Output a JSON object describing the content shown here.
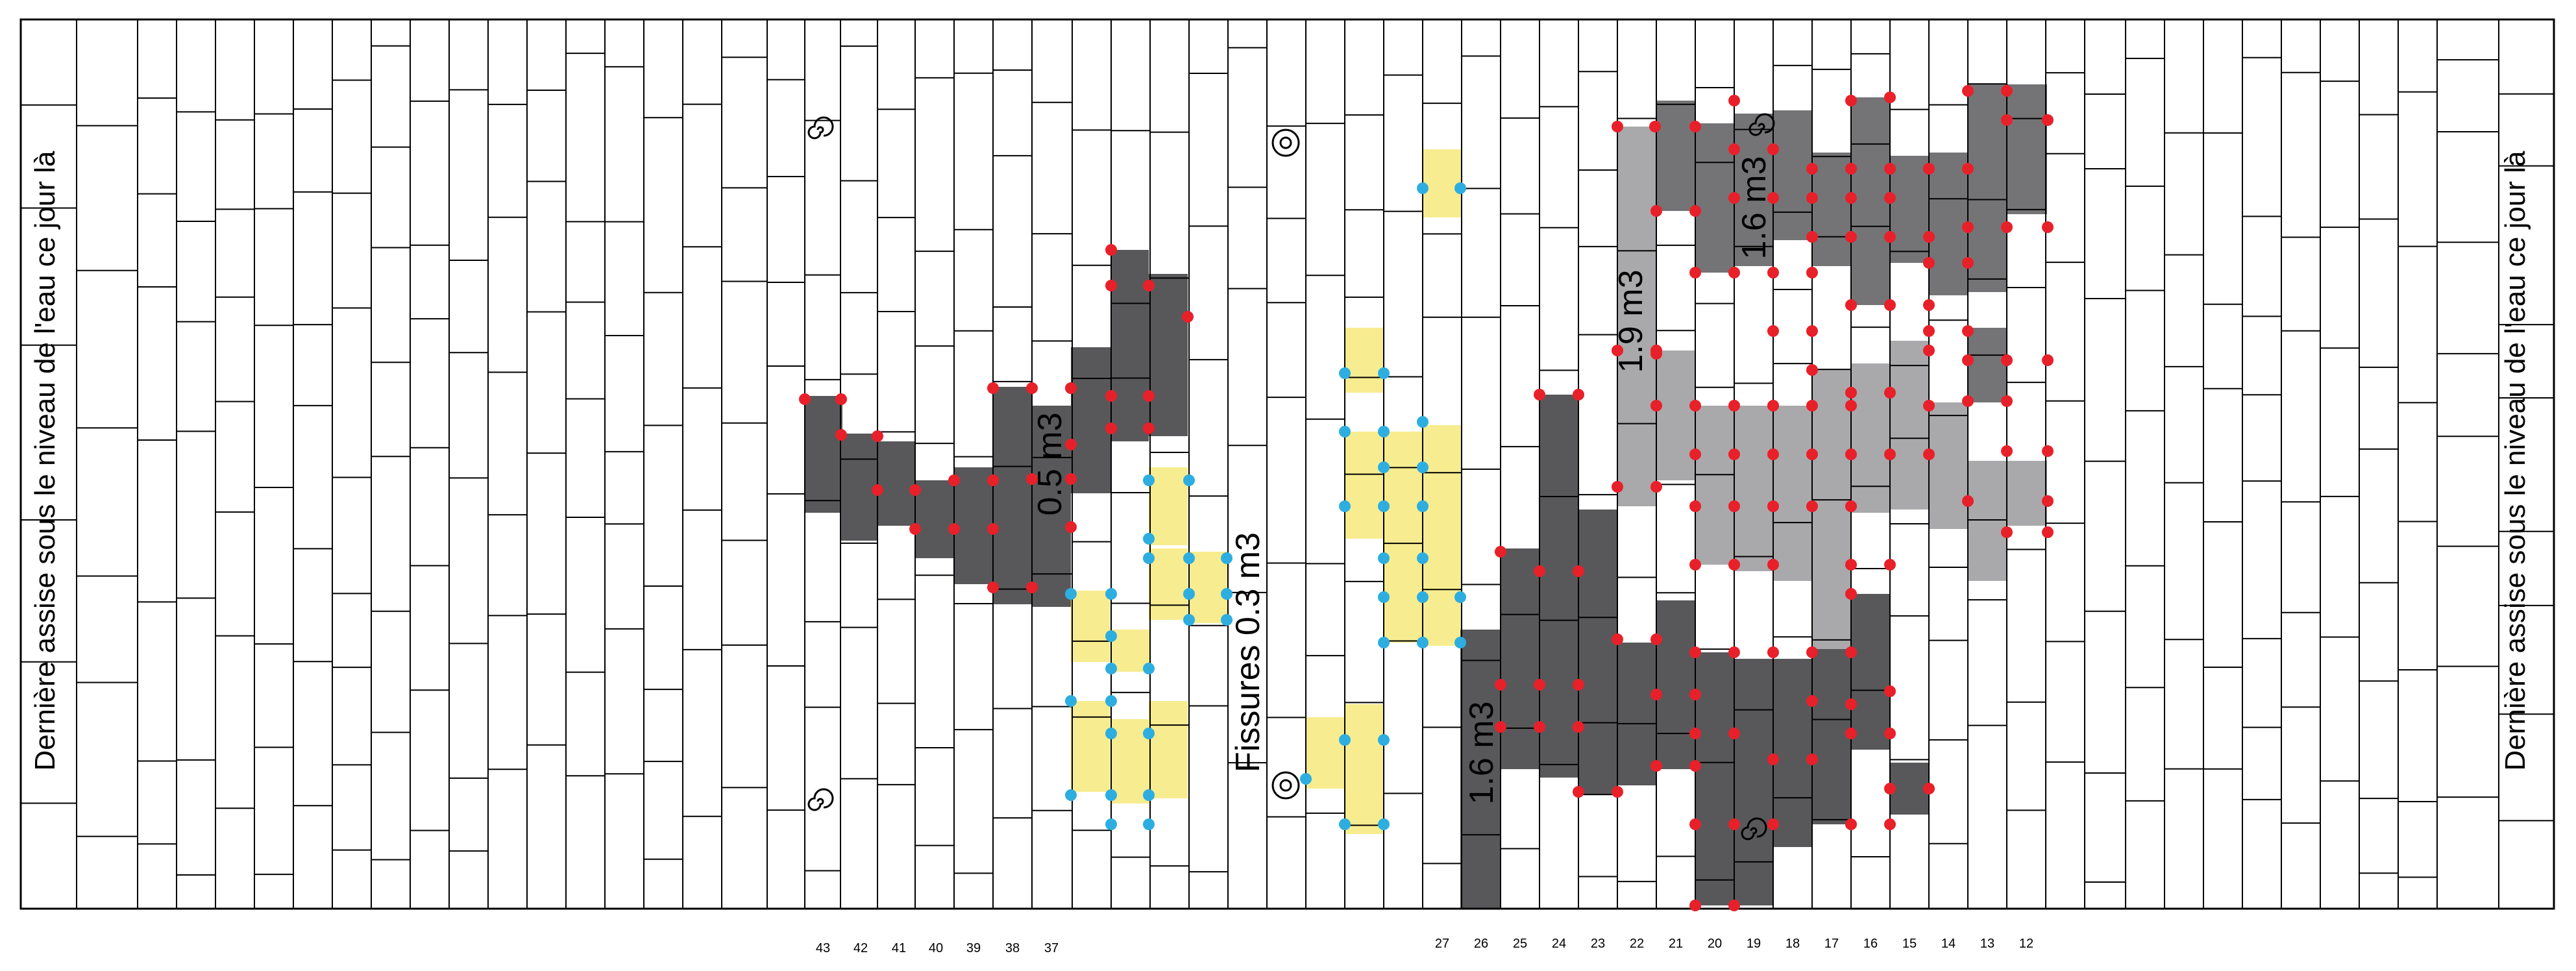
{
  "side_labels": {
    "left": "Dernière assise sous le niveau de l'eau ce jour là",
    "right": "Dernière assise sous le niveau de l'eau ce jour là"
  },
  "volume_labels": {
    "left_zone": "0.5 m3",
    "fissures": "Fissures 0.3 m3",
    "center_bottom": "1.6 m3",
    "right_light": "1.9 m3",
    "right_top": "1.6 m3"
  },
  "column_numbers": [
    "43",
    "42",
    "41",
    "40",
    "39",
    "38",
    "37",
    "27",
    "26",
    "25",
    "24",
    "23",
    "22",
    "21",
    "20",
    "19",
    "18",
    "17",
    "16",
    "15",
    "14",
    "13",
    "12"
  ],
  "colors": {
    "dark_zone": "#58585a",
    "medium_zone": "#747476",
    "light_zone": "#a9a9ab",
    "fissure_zone": "#f7ec8f",
    "red_marker": "#e8202a",
    "blue_marker": "#2eaee0",
    "grid_line": "#000000"
  },
  "icons": [
    "spiral-icon",
    "target-icon"
  ]
}
